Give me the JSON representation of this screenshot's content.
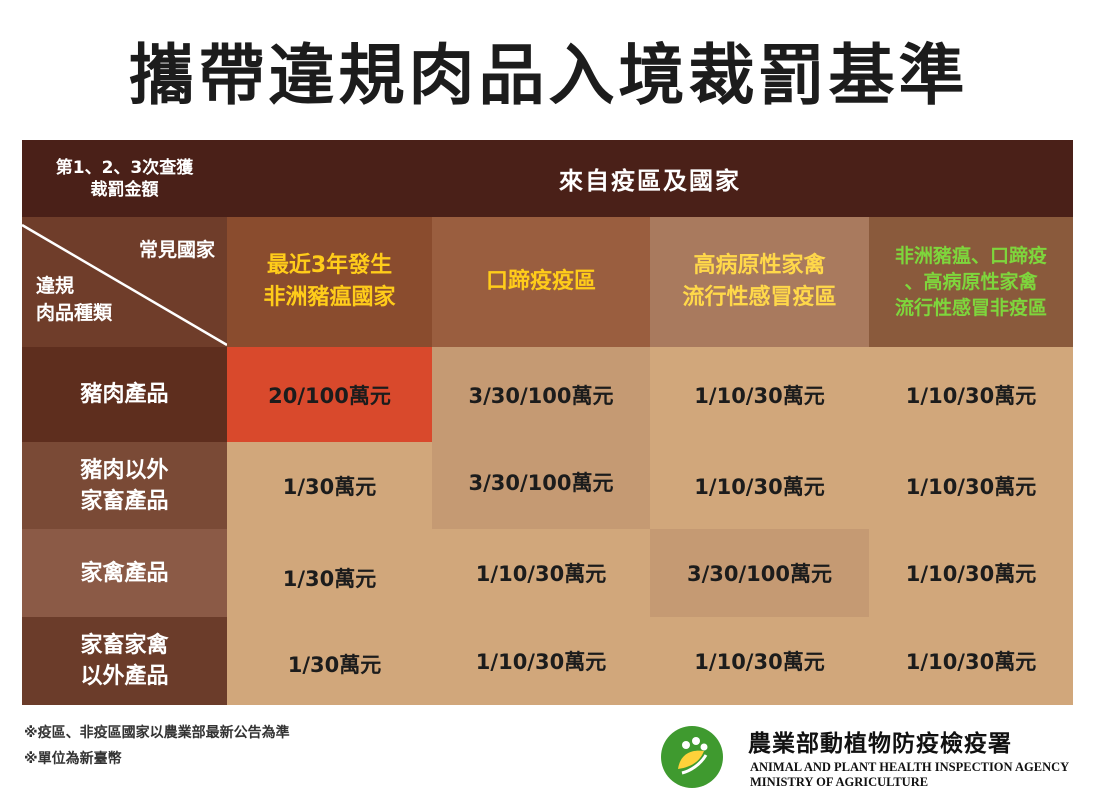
{
  "title": "攜帶違規肉品入境裁罰基準",
  "table": {
    "corner_top": [
      "第1、2、3次查獲",
      "裁罰金額"
    ],
    "origin_header": "來自疫區及國家",
    "corner_country": "常見國家",
    "corner_type": [
      "違規",
      "肉品種類"
    ],
    "columns": [
      [
        "最近3年發生",
        "非洲豬瘟國家"
      ],
      [
        "口蹄疫疫區"
      ],
      [
        "高病原性家禽",
        "流行性感冒疫區"
      ],
      [
        "非洲豬瘟、口蹄疫",
        "、高病原性家禽",
        "流行性感冒非疫區"
      ]
    ],
    "rows": [
      {
        "label": [
          "豬肉產品"
        ],
        "values": [
          "20/100萬元",
          "3/30/100萬元",
          "1/10/30萬元",
          "1/10/30萬元"
        ]
      },
      {
        "label": [
          "豬肉以外",
          "家畜產品"
        ],
        "values": [
          "1/30萬元",
          "3/30/100萬元",
          "1/10/30萬元",
          "1/10/30萬元"
        ]
      },
      {
        "label": [
          "家禽產品"
        ],
        "values": [
          "1/30萬元",
          "1/10/30萬元",
          "3/30/100萬元",
          "1/10/30萬元"
        ]
      },
      {
        "label": [
          "家畜家禽",
          "以外產品"
        ],
        "values": [
          "1/30萬元",
          "1/10/30萬元",
          "1/10/30萬元",
          "1/10/30萬元"
        ]
      }
    ]
  },
  "footnotes": [
    "※疫區、非疫區國家以農業部最新公告為準",
    "※單位為新臺幣"
  ],
  "agency": {
    "zh": "農業部動植物防疫檢疫署",
    "en1": "ANIMAL AND PLANT HEALTH INSPECTION AGENCY",
    "en2": "MINISTRY OF AGRICULTURE"
  },
  "colors": {
    "highlight_red": "#d9492c",
    "header_dark": "#4a2018",
    "yellow_text": "#ffcc1a",
    "green_text": "#7ed63c"
  }
}
